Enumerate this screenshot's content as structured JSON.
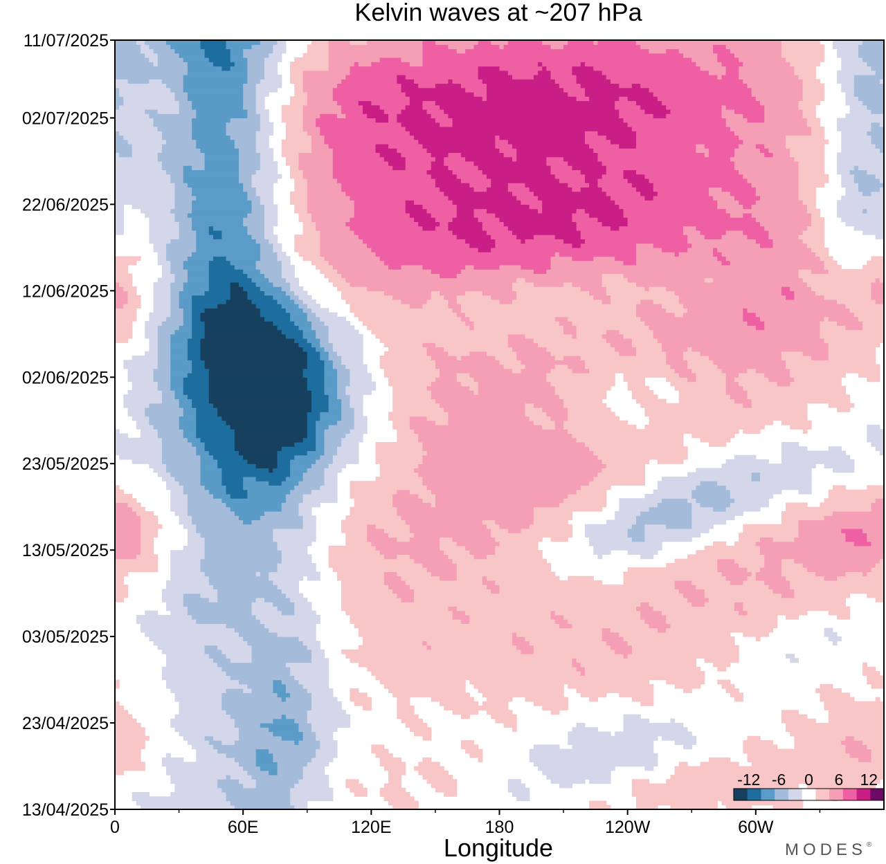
{
  "chart_data": {
    "type": "heatmap",
    "title": "Kelvin waves at ~207 hPa",
    "xlabel": "Longitude",
    "ylabel": "",
    "xlim": [
      0,
      360
    ],
    "y_dates": [
      "13/04/2025",
      "23/04/2025",
      "03/05/2025",
      "13/05/2025",
      "23/05/2025",
      "02/06/2025",
      "12/06/2025",
      "22/06/2025",
      "02/07/2025",
      "11/07/2025"
    ],
    "x_ticks": [
      {
        "lon": 0,
        "label": "0"
      },
      {
        "lon": 60,
        "label": "60E"
      },
      {
        "lon": 120,
        "label": "120E"
      },
      {
        "lon": 180,
        "label": "180"
      },
      {
        "lon": 240,
        "label": "120W"
      },
      {
        "lon": 300,
        "label": "60W"
      }
    ],
    "x_minor_ticks": [
      30,
      90,
      150,
      210,
      270,
      330
    ],
    "colorbar": {
      "labels": [
        {
          "value": -12,
          "label": "-12"
        },
        {
          "value": -6,
          "label": "-6"
        },
        {
          "value": 0,
          "label": "0"
        },
        {
          "value": 6,
          "label": "6"
        },
        {
          "value": 12,
          "label": "12"
        }
      ],
      "bounds": [
        -15,
        -12,
        -9,
        -6,
        -3,
        0,
        3,
        6,
        9,
        12,
        15
      ],
      "colors": [
        "#17405f",
        "#1d6e9e",
        "#5b9bc7",
        "#a4bcd9",
        "#d4d6ea",
        "#ffffff",
        "#f8c6c6",
        "#f59fb6",
        "#ee5fa3",
        "#c81e85",
        "#6d0a66"
      ]
    },
    "features": [
      {
        "lon": 48,
        "date": "11/07/2025",
        "len_lon": 22,
        "len_days": 45,
        "slope_lon_per_day": 0.15,
        "amplitude": -13
      },
      {
        "lon": 85,
        "date": "02/06/2025",
        "len_lon": 26,
        "len_days": 8,
        "slope_lon_per_day": -1.5,
        "amplitude": -11
      },
      {
        "lon": 78,
        "date": "25/05/2025",
        "len_lon": 18,
        "len_days": 8,
        "slope_lon_per_day": 0,
        "amplitude": -8
      },
      {
        "lon": 80,
        "date": "24/04/2025",
        "len_lon": 16,
        "len_days": 12,
        "slope_lon_per_day": 0.4,
        "amplitude": -7
      },
      {
        "lon": 65,
        "date": "12/06/2025",
        "len_lon": 20,
        "len_days": 22,
        "slope_lon_per_day": 0,
        "amplitude": -4
      },
      {
        "lon": 55,
        "date": "16/05/2025",
        "len_lon": 18,
        "len_days": 14,
        "slope_lon_per_day": 0,
        "amplitude": -3.5
      },
      {
        "lon": 0,
        "date": "29/06/2025",
        "len_lon": 14,
        "len_days": 14,
        "slope_lon_per_day": 0,
        "amplitude": -3.5
      },
      {
        "lon": 350,
        "date": "08/07/2025",
        "len_lon": 18,
        "len_days": 8,
        "slope_lon_per_day": 0,
        "amplitude": -6
      },
      {
        "lon": 345,
        "date": "20/06/2025",
        "len_lon": 14,
        "len_days": 7,
        "slope_lon_per_day": 0,
        "amplitude": -6
      },
      {
        "lon": 257,
        "date": "17/05/2025",
        "len_lon": 30,
        "len_days": 5,
        "slope_lon_per_day": 5,
        "amplitude": -11
      },
      {
        "lon": 227,
        "date": "13/06/2025",
        "len_lon": 55,
        "len_days": 5,
        "slope_lon_per_day": 5,
        "amplitude": -6
      },
      {
        "lon": 220,
        "date": "18/04/2025",
        "len_lon": 34,
        "len_days": 4,
        "slope_lon_per_day": 5,
        "amplitude": -7
      },
      {
        "lon": 240,
        "date": "31/05/2025",
        "len_lon": 24,
        "len_days": 4,
        "slope_lon_per_day": 0,
        "amplitude": -5
      },
      {
        "lon": 330,
        "date": "02/05/2025",
        "len_lon": 30,
        "len_days": 4,
        "slope_lon_per_day": 4,
        "amplitude": -4
      },
      {
        "lon": 330,
        "date": "22/05/2025",
        "len_lon": 32,
        "len_days": 4,
        "slope_lon_per_day": 4,
        "amplitude": -4
      },
      {
        "lon": 180,
        "date": "07/07/2025",
        "len_lon": 120,
        "len_days": 7,
        "slope_lon_per_day": 5,
        "amplitude": 9
      },
      {
        "lon": 190,
        "date": "26/06/2025",
        "len_lon": 120,
        "len_days": 8,
        "slope_lon_per_day": 5,
        "amplitude": 9
      },
      {
        "lon": 220,
        "date": "17/06/2025",
        "len_lon": 85,
        "len_days": 5,
        "slope_lon_per_day": 5,
        "amplitude": 8
      },
      {
        "lon": 200,
        "date": "03/06/2025",
        "len_lon": 110,
        "len_days": 9,
        "slope_lon_per_day": 4,
        "amplitude": 7
      },
      {
        "lon": 225,
        "date": "20/05/2025",
        "len_lon": 180,
        "len_days": 6,
        "slope_lon_per_day": 5,
        "amplitude": 5
      },
      {
        "lon": 240,
        "date": "10/05/2025",
        "len_lon": 200,
        "len_days": 6,
        "slope_lon_per_day": 5,
        "amplitude": 5
      },
      {
        "lon": 245,
        "date": "29/04/2025",
        "len_lon": 190,
        "len_days": 5,
        "slope_lon_per_day": 5,
        "amplitude": 4
      },
      {
        "lon": 230,
        "date": "16/04/2025",
        "len_lon": 95,
        "len_days": 4,
        "slope_lon_per_day": 5,
        "amplitude": 6
      },
      {
        "lon": 330,
        "date": "11/06/2025",
        "len_lon": 70,
        "len_days": 6,
        "slope_lon_per_day": 4,
        "amplitude": 4
      },
      {
        "lon": 0,
        "date": "15/05/2025",
        "len_lon": 25,
        "len_days": 3,
        "slope_lon_per_day": 0,
        "amplitude": 3.5
      },
      {
        "lon": 0,
        "date": "12/06/2025",
        "len_lon": 10,
        "len_days": 4,
        "slope_lon_per_day": 0,
        "amplitude": 3.5
      },
      {
        "lon": 355,
        "date": "21/04/2025",
        "len_lon": 22,
        "len_days": 3,
        "slope_lon_per_day": 0,
        "amplitude": 3.5
      }
    ]
  },
  "brand": "MODES",
  "brand_mark": "®"
}
